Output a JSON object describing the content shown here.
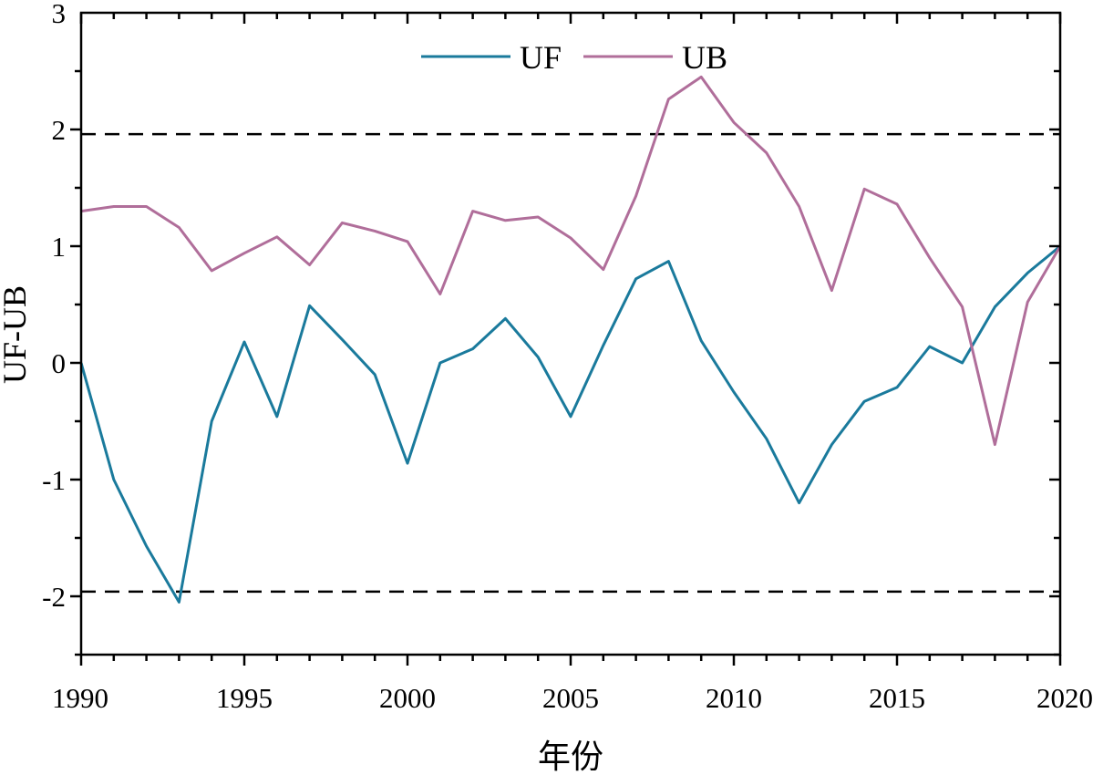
{
  "chart_data": {
    "type": "line",
    "title": "",
    "xlabel": "年份",
    "ylabel": "UF-UB",
    "xlim": [
      1990,
      2020
    ],
    "ylim": [
      -2.5,
      3
    ],
    "x_ticks": [
      1990,
      1995,
      2000,
      2005,
      2010,
      2015,
      2020
    ],
    "x_tick_labels": [
      "1990",
      "1995",
      "2000",
      "2005",
      "2010",
      "2015",
      "2020"
    ],
    "y_ticks": [
      -2,
      -1,
      0,
      1,
      2,
      3
    ],
    "y_tick_labels": [
      "-2",
      "-1",
      "0",
      "1",
      "2",
      "3"
    ],
    "grid": false,
    "legend_position": "top-center",
    "reference_lines": [
      {
        "y": 1.96,
        "style": "dashed",
        "color": "#000000"
      },
      {
        "y": -1.96,
        "style": "dashed",
        "color": "#000000"
      }
    ],
    "x": [
      1990,
      1991,
      1992,
      1993,
      1994,
      1995,
      1996,
      1997,
      1998,
      1999,
      2000,
      2001,
      2002,
      2003,
      2004,
      2005,
      2006,
      2007,
      2008,
      2009,
      2010,
      2011,
      2012,
      2013,
      2014,
      2015,
      2016,
      2017,
      2018,
      2019,
      2020
    ],
    "series": [
      {
        "name": "UF",
        "color": "#1a7a9c",
        "values": [
          0.0,
          -1.0,
          -1.57,
          -2.05,
          -0.5,
          0.18,
          -0.46,
          0.49,
          0.2,
          -0.1,
          -0.86,
          0.0,
          0.12,
          0.38,
          0.05,
          -0.46,
          0.15,
          0.72,
          0.87,
          0.19,
          -0.25,
          -0.65,
          -1.2,
          -0.7,
          -0.33,
          -0.21,
          0.14,
          0.0,
          0.48,
          0.77,
          1.0
        ]
      },
      {
        "name": "UB",
        "color": "#b06e9a",
        "values": [
          1.3,
          1.34,
          1.34,
          1.16,
          0.79,
          0.94,
          1.08,
          0.84,
          1.2,
          1.13,
          1.04,
          0.59,
          1.3,
          1.22,
          1.25,
          1.07,
          0.8,
          1.43,
          2.26,
          2.45,
          2.06,
          1.8,
          1.34,
          0.62,
          1.49,
          1.36,
          0.9,
          0.48,
          -0.7,
          0.52,
          1.0
        ]
      }
    ]
  }
}
